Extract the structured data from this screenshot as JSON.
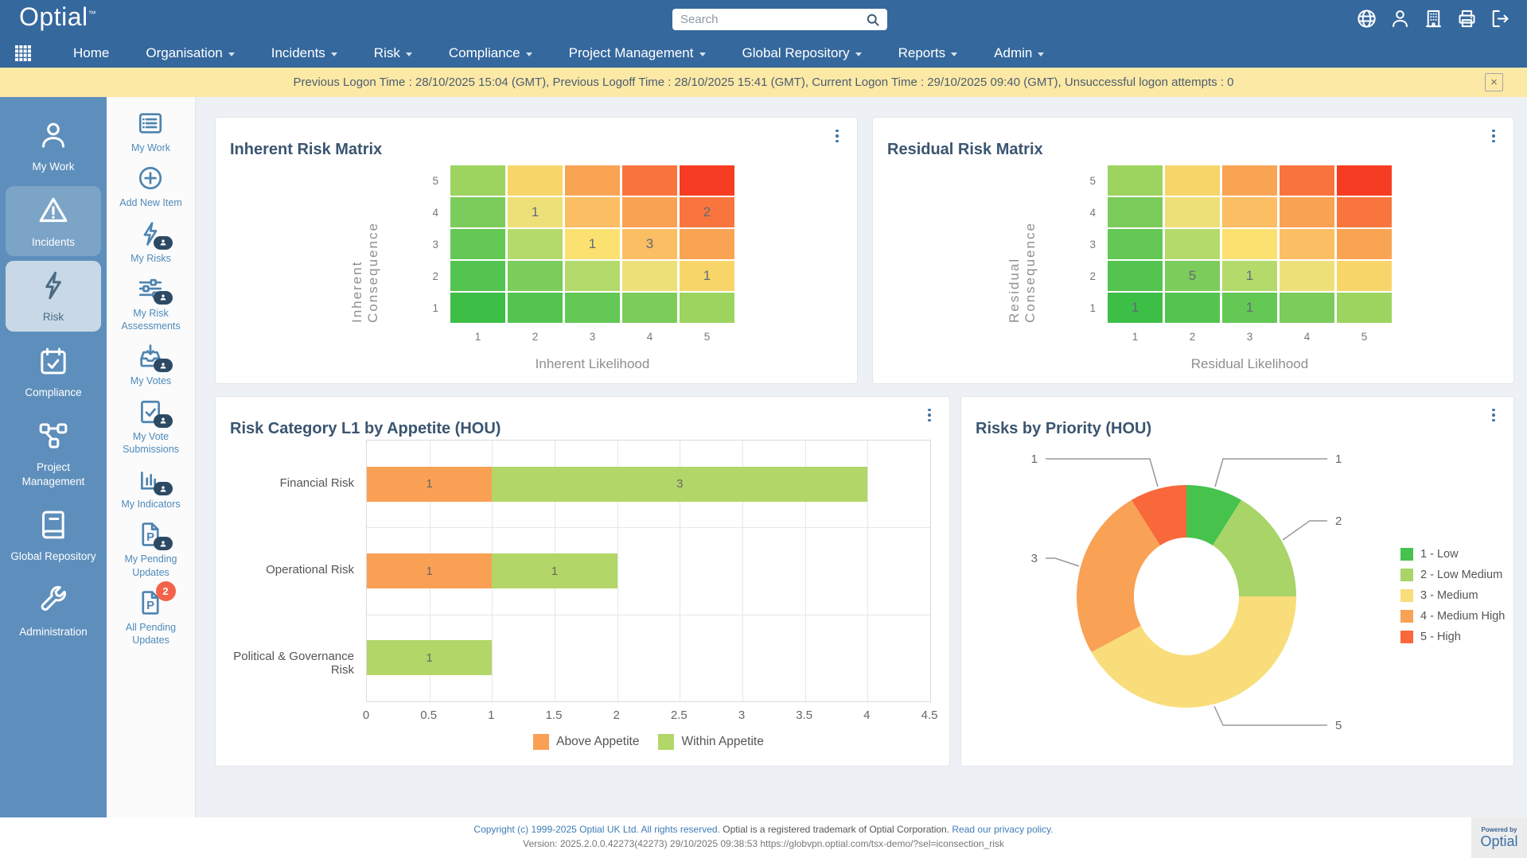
{
  "header": {
    "logo": "Optial",
    "logo_tm": "™",
    "search": {
      "placeholder": "Search"
    },
    "action_icons": [
      "globe",
      "user",
      "organisation",
      "print",
      "logout"
    ],
    "nav_items": [
      {
        "label": "Home",
        "caret": false
      },
      {
        "label": "Organisation",
        "caret": true
      },
      {
        "label": "Incidents",
        "caret": true
      },
      {
        "label": "Risk",
        "caret": true
      },
      {
        "label": "Compliance",
        "caret": true
      },
      {
        "label": "Project Management",
        "caret": true
      },
      {
        "label": "Global Repository",
        "caret": true
      },
      {
        "label": "Reports",
        "caret": true
      },
      {
        "label": "Admin",
        "caret": true
      }
    ]
  },
  "notification": {
    "text": "Previous Logon Time : 28/10/2025 15:04 (GMT), Previous Logoff Time : 28/10/2025 15:41 (GMT), Current Logon Time : 29/10/2025 09:40 (GMT), Unsuccessful logon attempts : 0",
    "close_label": "×"
  },
  "sidebar_items": [
    {
      "label": "My Work",
      "icon": "person",
      "state": "normal"
    },
    {
      "label": "Incidents",
      "icon": "warning-triangle",
      "state": "highlighted"
    },
    {
      "label": "Risk",
      "icon": "bolt",
      "state": "selected"
    },
    {
      "label": "Compliance",
      "icon": "calendar-check",
      "state": "normal"
    },
    {
      "label": "Project Management",
      "icon": "network",
      "state": "normal"
    },
    {
      "label": "Global Repository",
      "icon": "book",
      "state": "normal"
    },
    {
      "label": "Administration",
      "icon": "wrench",
      "state": "normal"
    }
  ],
  "workbar_items": [
    {
      "label": "My Work",
      "icon": "list-card"
    },
    {
      "label": "Add New Item",
      "icon": "plus-circle"
    },
    {
      "label": "My Risks",
      "icon": "bolt",
      "badge": "person"
    },
    {
      "label": "My Risk Assessments",
      "icon": "sliders",
      "badge": "person"
    },
    {
      "label": "My Votes",
      "icon": "vote-in",
      "badge": "person"
    },
    {
      "label": "My Vote Submissions",
      "icon": "check-doc",
      "badge": "person"
    },
    {
      "label": "My Indicators",
      "icon": "chart-bars",
      "badge": "person"
    },
    {
      "label": "My Pending Updates",
      "icon": "p-doc",
      "badge": "person"
    },
    {
      "label": "All Pending Updates",
      "icon": "p-doc",
      "badge_count": "2"
    }
  ],
  "badge_count_color": "#F4624A",
  "chart_data": [
    {
      "type": "heatmap",
      "title": "Inherent Risk Matrix",
      "xlabel": "Inherent Likelihood",
      "ylabel": "Inherent Consequence",
      "x_ticks": [
        "1",
        "2",
        "3",
        "4",
        "5"
      ],
      "y_ticks_top_to_bottom": [
        "5",
        "4",
        "3",
        "2",
        "1"
      ],
      "cell_values_top_to_bottom": [
        [
          "",
          "",
          "",
          "",
          ""
        ],
        [
          "",
          "1",
          "",
          "",
          "2"
        ],
        [
          "",
          "",
          "1",
          "3",
          ""
        ],
        [
          "",
          "",
          "",
          "",
          "1"
        ],
        [
          "",
          "",
          "",
          "",
          ""
        ]
      ],
      "cell_colors_top_to_bottom": [
        [
          "#9cd45f",
          "#f8d568",
          "#f9a453",
          "#f8743c",
          "#f63c22"
        ],
        [
          "#7ccc5b",
          "#eee079",
          "#fbbe63",
          "#faa254",
          "#f8763d"
        ],
        [
          "#63c854",
          "#b5da6c",
          "#fae170",
          "#fbbe63",
          "#f9a453"
        ],
        [
          "#52c44f",
          "#7ccc5b",
          "#b5da6c",
          "#eee079",
          "#f8d568"
        ],
        [
          "#3dbe47",
          "#52c44f",
          "#63c854",
          "#7ccc5b",
          "#9cd45f"
        ]
      ]
    },
    {
      "type": "heatmap",
      "title": "Residual Risk Matrix",
      "xlabel": "Residual Likelihood",
      "ylabel": "Residual Consequence",
      "x_ticks": [
        "1",
        "2",
        "3",
        "4",
        "5"
      ],
      "y_ticks_top_to_bottom": [
        "5",
        "4",
        "3",
        "2",
        "1"
      ],
      "cell_values_top_to_bottom": [
        [
          "",
          "",
          "",
          "",
          ""
        ],
        [
          "",
          "",
          "",
          "",
          ""
        ],
        [
          "",
          "",
          "",
          "",
          ""
        ],
        [
          "",
          "5",
          "1",
          "",
          ""
        ],
        [
          "1",
          "",
          "1",
          "",
          ""
        ]
      ],
      "cell_colors_top_to_bottom": [
        [
          "#9cd45f",
          "#f8d568",
          "#f9a453",
          "#f8743c",
          "#f63c22"
        ],
        [
          "#7ccc5b",
          "#eee079",
          "#fbbe63",
          "#faa254",
          "#f8763d"
        ],
        [
          "#63c854",
          "#b5da6c",
          "#fae170",
          "#fbbe63",
          "#f9a453"
        ],
        [
          "#52c44f",
          "#7ccc5b",
          "#b5da6c",
          "#eee079",
          "#f8d568"
        ],
        [
          "#3dbe47",
          "#52c44f",
          "#63c854",
          "#7ccc5b",
          "#9cd45f"
        ]
      ]
    },
    {
      "type": "bar",
      "title": "Risk Category L1 by Appetite (HOU)",
      "categories": [
        "Financial Risk",
        "Operational Risk",
        "Political & Governance Risk"
      ],
      "series": [
        {
          "name": "Above Appetite",
          "color": "#FAA055",
          "values": [
            1,
            1,
            0
          ]
        },
        {
          "name": "Within Appetite",
          "color": "#B2D668",
          "values": [
            3,
            1,
            1
          ]
        }
      ],
      "xlim": [
        0,
        4.5
      ],
      "x_ticks": [
        "0",
        "0.5",
        "1",
        "1.5",
        "2",
        "2.5",
        "3",
        "3.5",
        "4",
        "4.5"
      ],
      "grid": true,
      "legend_position": "bottom"
    },
    {
      "type": "donut",
      "title": "Risks by Priority (HOU)",
      "labels": [
        "1 - Low",
        "2 - Low Medium",
        "3 - Medium",
        "4 - Medium High",
        "5 - High"
      ],
      "values": [
        1,
        2,
        5,
        3,
        1
      ],
      "colors": [
        "#46C24D",
        "#A8D468",
        "#F8DD7A",
        "#F9A155",
        "#F8683A"
      ],
      "legend_position": "right"
    }
  ],
  "footer": {
    "copyright": "Copyright (c) 1999-2025 Optial UK Ltd. All rights reserved.",
    "trademark": "Optial is a registered trademark of Optial Corporation.",
    "privacy": "Read our privacy policy.",
    "version": "Version: 2025.2.0.0.42273(42273) 29/10/2025 09:38:53 https://globvpn.optial.com/tsx-demo/?sel=iconsection_risk",
    "powered_by": "Powered by",
    "powered_logo": "Optial"
  }
}
